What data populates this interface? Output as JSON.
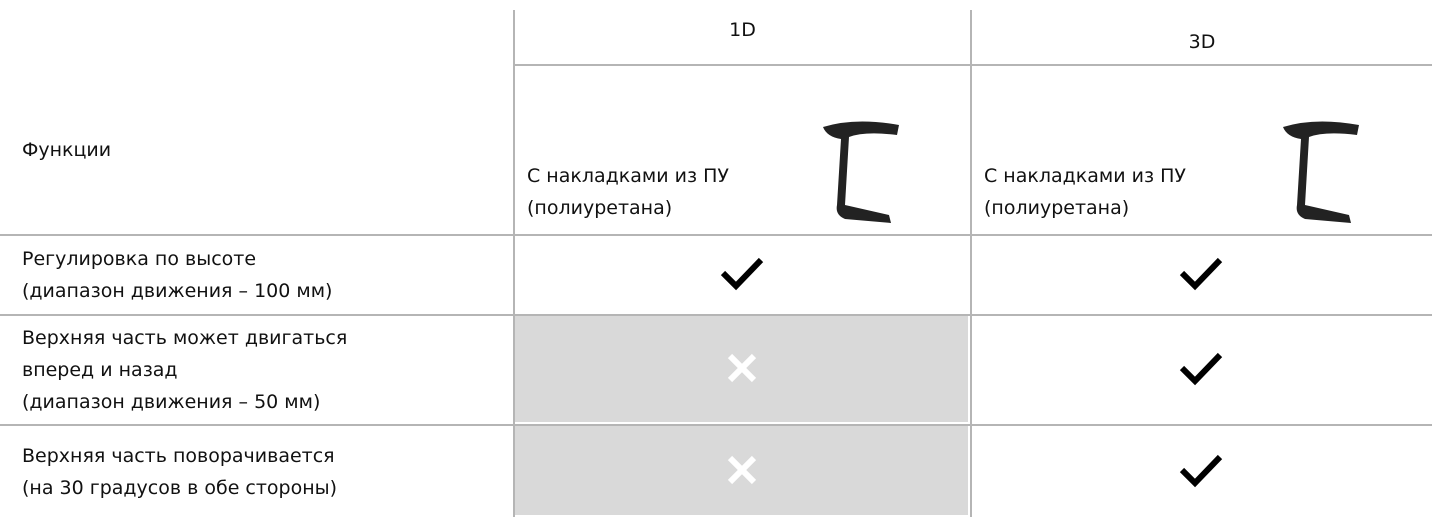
{
  "table": {
    "header": {
      "feature_label": "Функции",
      "columns": [
        "1D",
        "3D"
      ],
      "variants": [
        [
          "С накладками из ПУ",
          "(полиуретана)"
        ],
        [
          "С накладками из ПУ",
          "(полиуретана)"
        ]
      ]
    },
    "rows": [
      {
        "feature": [
          "Регулировка по высоте",
          "(диапазон движения – 100 мм)"
        ],
        "cells": [
          true,
          true
        ]
      },
      {
        "feature": [
          "Верхняя часть может двигаться",
          "вперед и назад",
          "(диапазон движения – 50 мм)"
        ],
        "cells": [
          false,
          true
        ]
      },
      {
        "feature": [
          "Верхняя часть поворачивается",
          "(на 30 градусов в обе стороны)"
        ],
        "cells": [
          false,
          true
        ]
      }
    ]
  }
}
